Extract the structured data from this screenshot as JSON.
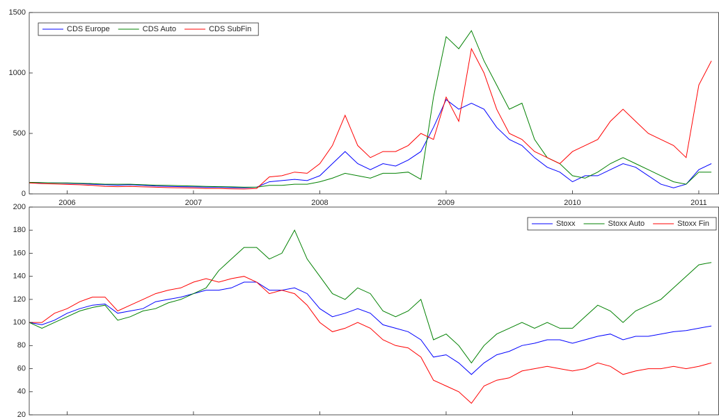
{
  "chart_data": [
    {
      "type": "line",
      "x": [
        2005.7,
        2005.8,
        2005.9,
        2006.0,
        2006.1,
        2006.2,
        2006.3,
        2006.4,
        2006.5,
        2006.6,
        2006.7,
        2006.8,
        2006.9,
        2007.0,
        2007.1,
        2007.2,
        2007.3,
        2007.4,
        2007.5,
        2007.6,
        2007.7,
        2007.8,
        2007.9,
        2008.0,
        2008.1,
        2008.2,
        2008.3,
        2008.4,
        2008.5,
        2008.6,
        2008.7,
        2008.8,
        2008.9,
        2009.0,
        2009.1,
        2009.2,
        2009.3,
        2009.4,
        2009.5,
        2009.6,
        2009.7,
        2009.8,
        2009.9,
        2010.0,
        2010.1,
        2010.2,
        2010.3,
        2010.4,
        2010.5,
        2010.6,
        2010.7,
        2010.8,
        2010.9,
        2011.0,
        2011.1
      ],
      "series": [
        {
          "name": "CDS Europe",
          "color": "#0000ff",
          "values": [
            95,
            92,
            90,
            88,
            85,
            80,
            75,
            72,
            75,
            70,
            65,
            62,
            60,
            58,
            55,
            55,
            52,
            50,
            55,
            100,
            110,
            120,
            110,
            150,
            250,
            350,
            250,
            200,
            250,
            230,
            280,
            350,
            550,
            780,
            700,
            750,
            700,
            550,
            450,
            400,
            300,
            220,
            180,
            100,
            150,
            150,
            200,
            250,
            220,
            150,
            80,
            50,
            80,
            200,
            250
          ]
        },
        {
          "name": "CDS Auto",
          "color": "#008000",
          "values": [
            95,
            93,
            90,
            90,
            88,
            85,
            80,
            80,
            80,
            75,
            72,
            70,
            68,
            65,
            62,
            60,
            58,
            55,
            55,
            70,
            70,
            80,
            80,
            100,
            130,
            170,
            150,
            130,
            170,
            170,
            180,
            120,
            800,
            1300,
            1200,
            1350,
            1100,
            900,
            700,
            750,
            450,
            300,
            250,
            150,
            130,
            180,
            250,
            300,
            250,
            200,
            150,
            100,
            80,
            180,
            180
          ]
        },
        {
          "name": "CDS SubFin",
          "color": "#ff0000",
          "values": [
            90,
            85,
            82,
            78,
            75,
            70,
            62,
            60,
            62,
            58,
            55,
            52,
            50,
            48,
            45,
            45,
            42,
            40,
            45,
            140,
            150,
            180,
            170,
            250,
            400,
            650,
            400,
            300,
            350,
            350,
            400,
            500,
            450,
            800,
            600,
            1200,
            1000,
            700,
            500,
            450,
            350,
            300,
            250,
            350,
            400,
            450,
            600,
            700,
            600,
            500,
            450,
            400,
            300,
            900,
            1100
          ]
        }
      ],
      "xlim": [
        2005.7,
        2011.16
      ],
      "xticks": [
        2006,
        2007,
        2008,
        2009,
        2010,
        2011
      ],
      "ylim": [
        0,
        1500
      ],
      "yticks": [
        0,
        500,
        1000,
        1500
      ],
      "legend": "upper left"
    },
    {
      "type": "line",
      "x": [
        2005.7,
        2005.8,
        2005.9,
        2006.0,
        2006.1,
        2006.2,
        2006.3,
        2006.4,
        2006.5,
        2006.6,
        2006.7,
        2006.8,
        2006.9,
        2007.0,
        2007.1,
        2007.2,
        2007.3,
        2007.4,
        2007.5,
        2007.6,
        2007.7,
        2007.8,
        2007.9,
        2008.0,
        2008.1,
        2008.2,
        2008.3,
        2008.4,
        2008.5,
        2008.6,
        2008.7,
        2008.8,
        2008.9,
        2009.0,
        2009.1,
        2009.2,
        2009.3,
        2009.4,
        2009.5,
        2009.6,
        2009.7,
        2009.8,
        2009.9,
        2010.0,
        2010.1,
        2010.2,
        2010.3,
        2010.4,
        2010.5,
        2010.6,
        2010.7,
        2010.8,
        2010.9,
        2011.0,
        2011.1
      ],
      "series": [
        {
          "name": "Stoxx",
          "color": "#0000ff",
          "values": [
            100,
            98,
            102,
            108,
            112,
            115,
            116,
            108,
            110,
            112,
            118,
            120,
            122,
            125,
            128,
            128,
            130,
            135,
            135,
            128,
            128,
            130,
            125,
            112,
            105,
            108,
            112,
            108,
            98,
            95,
            92,
            85,
            70,
            72,
            65,
            55,
            65,
            72,
            75,
            80,
            82,
            85,
            85,
            82,
            85,
            88,
            90,
            85,
            88,
            88,
            90,
            92,
            93,
            95,
            97
          ]
        },
        {
          "name": "Stoxx Auto",
          "color": "#008000",
          "values": [
            100,
            95,
            100,
            105,
            110,
            113,
            115,
            102,
            105,
            110,
            112,
            117,
            120,
            125,
            130,
            145,
            155,
            165,
            165,
            155,
            160,
            180,
            155,
            140,
            125,
            120,
            130,
            125,
            110,
            105,
            110,
            120,
            85,
            90,
            80,
            65,
            80,
            90,
            95,
            100,
            95,
            100,
            95,
            95,
            105,
            115,
            110,
            100,
            110,
            115,
            120,
            130,
            140,
            150,
            152
          ]
        },
        {
          "name": "Stoxx Fin",
          "color": "#ff0000",
          "values": [
            100,
            100,
            108,
            112,
            118,
            122,
            122,
            110,
            115,
            120,
            125,
            128,
            130,
            135,
            138,
            135,
            138,
            140,
            135,
            125,
            128,
            125,
            115,
            100,
            92,
            95,
            100,
            95,
            85,
            80,
            78,
            70,
            50,
            45,
            40,
            30,
            45,
            50,
            52,
            58,
            60,
            62,
            60,
            58,
            60,
            65,
            62,
            55,
            58,
            60,
            60,
            62,
            60,
            62,
            65
          ]
        }
      ],
      "xlim": [
        2005.7,
        2011.16
      ],
      "xticks": [
        2006,
        2007,
        2008,
        2009,
        2010,
        2011
      ],
      "ylim": [
        20,
        200
      ],
      "yticks": [
        20,
        40,
        60,
        80,
        100,
        120,
        140,
        160,
        180,
        200
      ],
      "legend": "upper right"
    }
  ]
}
